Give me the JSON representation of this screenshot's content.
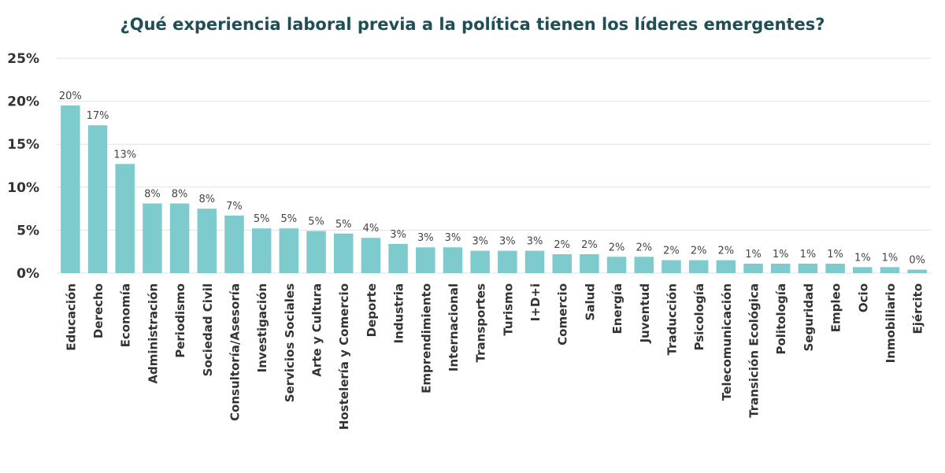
{
  "chart_data": {
    "type": "bar",
    "title": "¿Qué experiencia laboral previa a la política tienen los líderes emergentes?",
    "xlabel": "",
    "ylabel": "",
    "ylim": [
      0,
      25
    ],
    "yticks": [
      "0%",
      "5%",
      "10%",
      "15%",
      "20%",
      "25%"
    ],
    "grid": true,
    "categories": [
      "Educación",
      "Derecho",
      "Economía",
      "Administración",
      "Periodismo",
      "Sociedad Civil",
      "Consultoría/Asesoría",
      "Investigación",
      "Servicios Sociales",
      "Arte y Cultura",
      "Hostelería y Comercio",
      "Deporte",
      "Industria",
      "Emprendimiento",
      "Internacional",
      "Transportes",
      "Turismo",
      "I+D+i",
      "Comercio",
      "Salud",
      "Energía",
      "Juventud",
      "Traducción",
      "Psicología",
      "Telecomunicación",
      "Transición Ecológica",
      "Politología",
      "Seguridad",
      "Empleo",
      "Ocio",
      "Inmobiliario",
      "Ejército"
    ],
    "values": [
      19.5,
      17.2,
      12.7,
      8.1,
      8.1,
      7.5,
      6.7,
      5.2,
      5.2,
      4.9,
      4.6,
      4.1,
      3.4,
      3.0,
      3.0,
      2.6,
      2.6,
      2.6,
      2.2,
      2.2,
      1.9,
      1.9,
      1.5,
      1.5,
      1.5,
      1.1,
      1.1,
      1.1,
      1.1,
      0.7,
      0.7,
      0.4
    ],
    "data_labels": [
      "20%",
      "17%",
      "13%",
      "8%",
      "8%",
      "8%",
      "7%",
      "5%",
      "5%",
      "5%",
      "5%",
      "4%",
      "3%",
      "3%",
      "3%",
      "3%",
      "3%",
      "3%",
      "2%",
      "2%",
      "2%",
      "2%",
      "2%",
      "2%",
      "2%",
      "1%",
      "1%",
      "1%",
      "1%",
      "1%",
      "1%",
      "0%"
    ]
  },
  "colors": {
    "bar": "#7ecbcd",
    "title": "#1f4e54",
    "axis_text": "#333333",
    "label_text": "#444444",
    "grid": "#e2e2e2"
  }
}
